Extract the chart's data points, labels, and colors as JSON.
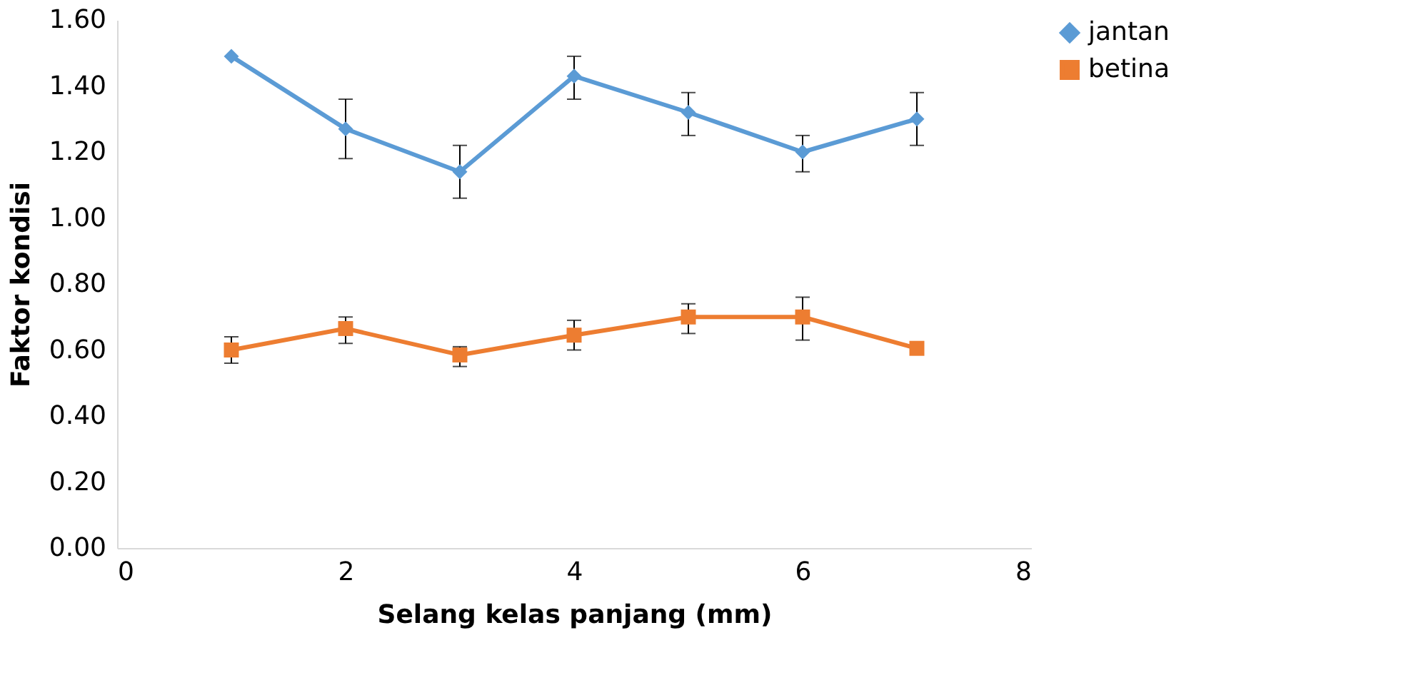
{
  "chart_data": {
    "type": "line",
    "xlabel": "Selang kelas panjang (mm)",
    "ylabel": "Faktor kondisi",
    "x": [
      1,
      2,
      3,
      4,
      5,
      6,
      7
    ],
    "series": [
      {
        "name": "jantan",
        "color": "#5b9bd5",
        "marker": "diamond",
        "values": [
          1.49,
          1.27,
          1.14,
          1.43,
          1.32,
          1.2,
          1.3
        ],
        "errors": [
          null,
          [
            1.18,
            1.36
          ],
          [
            1.06,
            1.22
          ],
          [
            1.36,
            1.49
          ],
          [
            1.25,
            1.38
          ],
          [
            1.14,
            1.25
          ],
          [
            1.22,
            1.38
          ]
        ]
      },
      {
        "name": "betina",
        "color": "#ed7d31",
        "marker": "square",
        "values": [
          0.6,
          0.665,
          0.585,
          0.645,
          0.7,
          0.7,
          0.605
        ],
        "errors": [
          [
            0.56,
            0.64
          ],
          [
            0.62,
            0.7
          ],
          [
            0.55,
            0.61
          ],
          [
            0.6,
            0.69
          ],
          [
            0.65,
            0.74
          ],
          [
            0.63,
            0.76
          ],
          null
        ]
      }
    ],
    "xlim": [
      0,
      8
    ],
    "xticks": [
      0,
      2,
      4,
      6,
      8
    ],
    "ylim": [
      0,
      1.6
    ],
    "yticks": [
      {
        "value": 0,
        "label": "0.00"
      },
      {
        "value": 0.2,
        "label": "0.20"
      },
      {
        "value": 0.4,
        "label": "0.40"
      },
      {
        "value": 0.6,
        "label": "0.60"
      },
      {
        "value": 0.8,
        "label": "0.80"
      },
      {
        "value": 1.0,
        "label": "1.00"
      },
      {
        "value": 1.2,
        "label": "1.20"
      },
      {
        "value": 1.4,
        "label": "1.40"
      },
      {
        "value": 1.6,
        "label": "1.60"
      }
    ],
    "grid": false,
    "legend": "right",
    "line_style": "solid"
  }
}
